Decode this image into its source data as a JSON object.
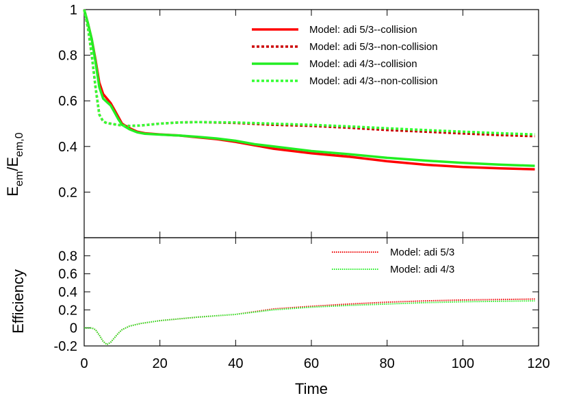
{
  "chart_data": [
    {
      "type": "line",
      "title": "",
      "xlabel": "Time",
      "ylabel": "E_em/E_em,0",
      "ylabel_main": "E",
      "ylabel_main_sub": "em",
      "ylabel_sep": "/E",
      "ylabel_denom_sub": "em,0",
      "xlim": [
        0,
        120
      ],
      "ylim": [
        0,
        1
      ],
      "yticks": [
        "0.2",
        "0.4",
        "0.6",
        "0.8",
        "1"
      ],
      "grid": false,
      "legend_position": "top-right",
      "series": [
        {
          "name": "Model: adi 5/3--collision",
          "color": "#ff0000",
          "dash": "solid",
          "x": [
            0,
            1,
            2,
            3,
            4,
            5,
            6,
            7,
            8,
            9,
            10,
            12,
            14,
            16,
            20,
            25,
            30,
            35,
            40,
            45,
            50,
            60,
            70,
            80,
            90,
            100,
            110,
            119
          ],
          "y": [
            1.0,
            0.94,
            0.87,
            0.78,
            0.68,
            0.63,
            0.61,
            0.59,
            0.56,
            0.53,
            0.5,
            0.48,
            0.465,
            0.458,
            0.453,
            0.448,
            0.44,
            0.432,
            0.42,
            0.405,
            0.39,
            0.37,
            0.355,
            0.335,
            0.32,
            0.31,
            0.304,
            0.3
          ]
        },
        {
          "name": "Model: adi 5/3--non-collision",
          "color": "#cc0000",
          "dash": "dashed",
          "x": [
            0,
            1,
            2,
            3,
            4,
            5,
            6,
            7,
            8,
            10,
            12,
            15,
            20,
            25,
            30,
            40,
            50,
            60,
            70,
            80,
            90,
            100,
            110,
            119
          ],
          "y": [
            1.0,
            0.92,
            0.8,
            0.66,
            0.54,
            0.51,
            0.502,
            0.5,
            0.497,
            0.492,
            0.49,
            0.492,
            0.5,
            0.505,
            0.507,
            0.503,
            0.495,
            0.49,
            0.482,
            0.472,
            0.465,
            0.457,
            0.45,
            0.445
          ]
        },
        {
          "name": "Model: adi 4/3--collision",
          "color": "#22ee22",
          "dash": "solid",
          "x": [
            0,
            1,
            2,
            3,
            4,
            5,
            6,
            7,
            8,
            9,
            10,
            12,
            14,
            16,
            20,
            25,
            30,
            35,
            40,
            45,
            50,
            60,
            70,
            80,
            90,
            100,
            110,
            119
          ],
          "y": [
            1.0,
            0.94,
            0.87,
            0.77,
            0.66,
            0.61,
            0.595,
            0.58,
            0.55,
            0.52,
            0.495,
            0.475,
            0.462,
            0.456,
            0.452,
            0.448,
            0.442,
            0.435,
            0.425,
            0.41,
            0.4,
            0.38,
            0.366,
            0.35,
            0.338,
            0.328,
            0.32,
            0.315
          ]
        },
        {
          "name": "Model: adi 4/3--non-collision",
          "color": "#33ff33",
          "dash": "dashed",
          "x": [
            0,
            1,
            2,
            3,
            4,
            5,
            6,
            7,
            8,
            10,
            12,
            15,
            20,
            25,
            30,
            40,
            50,
            60,
            70,
            80,
            90,
            100,
            110,
            119
          ],
          "y": [
            1.0,
            0.92,
            0.8,
            0.66,
            0.54,
            0.51,
            0.502,
            0.5,
            0.497,
            0.492,
            0.49,
            0.492,
            0.5,
            0.505,
            0.507,
            0.505,
            0.5,
            0.495,
            0.488,
            0.48,
            0.472,
            0.465,
            0.458,
            0.453
          ]
        }
      ]
    },
    {
      "type": "line",
      "title": "",
      "xlabel": "Time",
      "ylabel": "Efficiency",
      "xlim": [
        0,
        120
      ],
      "ylim": [
        -0.2,
        1
      ],
      "xticks": [
        "0",
        "20",
        "40",
        "60",
        "80",
        "100",
        "120"
      ],
      "yticks": [
        "-0.2",
        "0",
        "0.2",
        "0.4",
        "0.6",
        "0.8"
      ],
      "grid": false,
      "legend_position": "top-right",
      "series": [
        {
          "name": "Model: adi 5/3",
          "color": "#ee0000",
          "dash": "dotted",
          "x": [
            0,
            1,
            2,
            3,
            4,
            5,
            6,
            7,
            8,
            9,
            10,
            12,
            15,
            20,
            25,
            30,
            35,
            40,
            45,
            50,
            60,
            70,
            80,
            90,
            100,
            110,
            119
          ],
          "y": [
            0.0,
            0.0,
            0.0,
            -0.02,
            -0.08,
            -0.15,
            -0.185,
            -0.16,
            -0.11,
            -0.06,
            -0.02,
            0.02,
            0.05,
            0.08,
            0.1,
            0.12,
            0.135,
            0.15,
            0.18,
            0.21,
            0.24,
            0.265,
            0.285,
            0.3,
            0.31,
            0.315,
            0.32
          ]
        },
        {
          "name": "Model: adi 4/3",
          "color": "#22ee22",
          "dash": "dotted",
          "x": [
            0,
            1,
            2,
            3,
            4,
            5,
            6,
            7,
            8,
            9,
            10,
            12,
            15,
            20,
            25,
            30,
            35,
            40,
            45,
            50,
            60,
            70,
            80,
            90,
            100,
            110,
            119
          ],
          "y": [
            0.0,
            0.0,
            0.0,
            -0.02,
            -0.08,
            -0.15,
            -0.185,
            -0.16,
            -0.11,
            -0.06,
            -0.02,
            0.02,
            0.05,
            0.08,
            0.1,
            0.12,
            0.135,
            0.15,
            0.175,
            0.2,
            0.23,
            0.25,
            0.265,
            0.28,
            0.29,
            0.295,
            0.3
          ]
        }
      ]
    }
  ]
}
